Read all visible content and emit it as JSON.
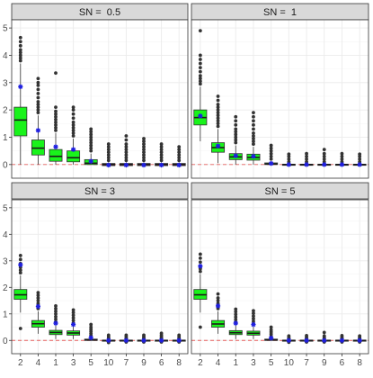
{
  "chart_data": {
    "type": "boxplot",
    "facet_layout": "2x2",
    "y_ticks": [
      0,
      1,
      2,
      3,
      4,
      5
    ],
    "ylim": [
      -0.5,
      5.3
    ],
    "reference_line": {
      "y": 0,
      "style": "dashed",
      "color": "#e8605e"
    },
    "colors": {
      "box_fill_positive": "#19f31b",
      "box_fill_zero": "#c1272d",
      "mean_marker": "#1f1fe0",
      "outlier": "#333333",
      "strip_fill": "#d9d9d9",
      "grid": "#ebebeb"
    },
    "panels": [
      {
        "label": "SN =  0.5",
        "categories": [
          "2",
          "4",
          "1",
          "3",
          "5",
          "10",
          "7",
          "9",
          "6",
          "8"
        ],
        "boxes": [
          {
            "q1": 1.05,
            "median": 1.63,
            "q3": 2.1,
            "whisker_low": 0.0,
            "whisker_high": 3.7,
            "mean": 2.85,
            "outliers": [
              3.8,
              3.9,
              4.0,
              4.1,
              4.2,
              4.35,
              4.5,
              4.65
            ],
            "fill": "positive"
          },
          {
            "q1": 0.35,
            "median": 0.6,
            "q3": 0.9,
            "whisker_low": 0.0,
            "whisker_high": 1.8,
            "mean": 1.25,
            "outliers": [
              1.9,
              2.0,
              2.1,
              2.2,
              2.3,
              2.45,
              2.6,
              2.75,
              2.9,
              3.0,
              3.15
            ],
            "fill": "positive"
          },
          {
            "q1": 0.12,
            "median": 0.3,
            "q3": 0.55,
            "whisker_low": 0.0,
            "whisker_high": 1.15,
            "mean": 0.65,
            "outliers": [
              1.25,
              1.35,
              1.45,
              1.55,
              1.65,
              1.75,
              1.85,
              1.95,
              2.1,
              3.35
            ],
            "fill": "positive"
          },
          {
            "q1": 0.1,
            "median": 0.25,
            "q3": 0.5,
            "whisker_low": 0.0,
            "whisker_high": 0.95,
            "mean": 0.55,
            "outliers": [
              1.05,
              1.15,
              1.25,
              1.35,
              1.45,
              1.55,
              1.7,
              1.85,
              2.0,
              2.1
            ],
            "fill": "positive"
          },
          {
            "q1": 0.0,
            "median": 0.05,
            "q3": 0.18,
            "whisker_low": 0.0,
            "whisker_high": 0.4,
            "mean": 0.12,
            "outliers": [
              0.5,
              0.6,
              0.7,
              0.8,
              0.9,
              1.0,
              1.1,
              1.2,
              1.3
            ],
            "fill": "positive"
          },
          {
            "q1": -0.04,
            "median": 0.0,
            "q3": 0.04,
            "whisker_low": -0.08,
            "whisker_high": 0.08,
            "mean": -0.02,
            "outliers": [
              0.15,
              0.25,
              0.35,
              0.45,
              0.55,
              0.65,
              0.75
            ],
            "fill": "zero"
          },
          {
            "q1": -0.04,
            "median": 0.0,
            "q3": 0.04,
            "whisker_low": -0.08,
            "whisker_high": 0.08,
            "mean": -0.02,
            "outliers": [
              0.15,
              0.25,
              0.35,
              0.45,
              0.55,
              0.65,
              0.75,
              0.9,
              1.05
            ],
            "fill": "zero"
          },
          {
            "q1": -0.04,
            "median": 0.0,
            "q3": 0.04,
            "whisker_low": -0.08,
            "whisker_high": 0.08,
            "mean": -0.02,
            "outliers": [
              0.15,
              0.25,
              0.35,
              0.45,
              0.55,
              0.65,
              0.75,
              0.85,
              0.95
            ],
            "fill": "zero"
          },
          {
            "q1": -0.04,
            "median": 0.0,
            "q3": 0.04,
            "whisker_low": -0.08,
            "whisker_high": 0.08,
            "mean": -0.02,
            "outliers": [
              0.15,
              0.25,
              0.35,
              0.45,
              0.55,
              0.65,
              0.75
            ],
            "fill": "zero"
          },
          {
            "q1": -0.04,
            "median": 0.0,
            "q3": 0.04,
            "whisker_low": -0.08,
            "whisker_high": 0.08,
            "mean": -0.02,
            "outliers": [
              0.15,
              0.25,
              0.35,
              0.45,
              0.55,
              0.65
            ],
            "fill": "zero"
          }
        ]
      },
      {
        "label": "SN =  1",
        "categories": [
          "2",
          "4",
          "1",
          "3",
          "5",
          "10",
          "7",
          "9",
          "6",
          "8"
        ],
        "boxes": [
          {
            "q1": 1.45,
            "median": 1.72,
            "q3": 2.0,
            "whisker_low": 0.85,
            "whisker_high": 2.85,
            "mean": 1.78,
            "outliers": [
              2.95,
              3.05,
              3.15,
              3.25,
              3.4,
              3.55,
              3.7,
              3.85,
              4.0,
              4.9
            ],
            "fill": "positive"
          },
          {
            "q1": 0.45,
            "median": 0.62,
            "q3": 0.8,
            "whisker_low": 0.05,
            "whisker_high": 1.3,
            "mean": 0.68,
            "outliers": [
              1.4,
              1.5,
              1.6,
              1.7,
              1.8,
              1.9,
              2.0,
              2.1,
              2.2,
              2.35,
              2.5
            ],
            "fill": "positive"
          },
          {
            "q1": 0.18,
            "median": 0.28,
            "q3": 0.4,
            "whisker_low": 0.0,
            "whisker_high": 0.7,
            "mean": 0.32,
            "outliers": [
              0.8,
              0.9,
              1.0,
              1.1,
              1.2,
              1.3,
              1.45,
              1.6,
              1.75
            ],
            "fill": "positive"
          },
          {
            "q1": 0.16,
            "median": 0.26,
            "q3": 0.38,
            "whisker_low": 0.0,
            "whisker_high": 0.65,
            "mean": 0.3,
            "outliers": [
              0.75,
              0.85,
              0.95,
              1.05,
              1.15,
              1.3,
              1.45,
              1.6,
              1.75,
              1.9
            ],
            "fill": "positive"
          },
          {
            "q1": 0.0,
            "median": 0.02,
            "q3": 0.06,
            "whisker_low": 0.0,
            "whisker_high": 0.12,
            "mean": 0.04,
            "outliers": [
              0.2,
              0.3,
              0.4,
              0.5,
              0.6,
              0.7
            ],
            "fill": "positive"
          },
          {
            "q1": -0.01,
            "median": 0.0,
            "q3": 0.01,
            "whisker_low": -0.03,
            "whisker_high": 0.03,
            "mean": 0.0,
            "outliers": [
              0.1,
              0.2,
              0.3,
              0.38
            ],
            "fill": "zero"
          },
          {
            "q1": -0.01,
            "median": 0.0,
            "q3": 0.01,
            "whisker_low": -0.03,
            "whisker_high": 0.03,
            "mean": 0.0,
            "outliers": [
              0.1,
              0.2,
              0.3,
              0.4
            ],
            "fill": "zero"
          },
          {
            "q1": -0.01,
            "median": 0.0,
            "q3": 0.01,
            "whisker_low": -0.03,
            "whisker_high": 0.03,
            "mean": 0.0,
            "outliers": [
              0.1,
              0.2,
              0.3,
              0.4,
              0.55
            ],
            "fill": "zero"
          },
          {
            "q1": -0.01,
            "median": 0.0,
            "q3": 0.01,
            "whisker_low": -0.03,
            "whisker_high": 0.03,
            "mean": 0.0,
            "outliers": [
              0.1,
              0.2,
              0.3,
              0.4
            ],
            "fill": "zero"
          },
          {
            "q1": -0.01,
            "median": 0.0,
            "q3": 0.01,
            "whisker_low": -0.03,
            "whisker_high": 0.03,
            "mean": 0.0,
            "outliers": [
              0.1,
              0.2,
              0.3,
              0.38
            ],
            "fill": "zero"
          }
        ]
      },
      {
        "label": "SN = 3",
        "categories": [
          "2",
          "4",
          "1",
          "3",
          "5",
          "10",
          "7",
          "9",
          "6",
          "8"
        ],
        "boxes": [
          {
            "q1": 1.55,
            "median": 1.72,
            "q3": 1.92,
            "whisker_low": 1.05,
            "whisker_high": 2.45,
            "mean": 2.85,
            "outliers": [
              0.45,
              2.55,
              2.65,
              2.75,
              2.9,
              3.05,
              3.2
            ],
            "fill": "positive"
          },
          {
            "q1": 0.5,
            "median": 0.63,
            "q3": 0.75,
            "whisker_low": 0.25,
            "whisker_high": 1.1,
            "mean": 1.28,
            "outliers": [
              1.2,
              1.3,
              1.4,
              1.5,
              1.6,
              1.7,
              1.8
            ],
            "fill": "positive"
          },
          {
            "q1": 0.22,
            "median": 0.3,
            "q3": 0.38,
            "whisker_low": 0.05,
            "whisker_high": 0.6,
            "mean": 0.65,
            "outliers": [
              0.7,
              0.8,
              0.9,
              1.0,
              1.1,
              1.2,
              1.3
            ],
            "fill": "positive"
          },
          {
            "q1": 0.2,
            "median": 0.28,
            "q3": 0.36,
            "whisker_low": 0.05,
            "whisker_high": 0.55,
            "mean": 0.6,
            "outliers": [
              0.65,
              0.75,
              0.85,
              0.95,
              1.05,
              1.15
            ],
            "fill": "positive"
          },
          {
            "q1": 0.0,
            "median": 0.02,
            "q3": 0.05,
            "whisker_low": 0.0,
            "whisker_high": 0.1,
            "mean": 0.1,
            "outliers": [
              0.18,
              0.26,
              0.34,
              0.42,
              0.5,
              0.6
            ],
            "fill": "positive"
          },
          {
            "q1": -0.01,
            "median": 0.0,
            "q3": 0.01,
            "whisker_low": -0.03,
            "whisker_high": 0.03,
            "mean": 0.0,
            "outliers": [
              -0.08,
              0.08,
              0.14,
              0.2
            ],
            "fill": "zero"
          },
          {
            "q1": -0.01,
            "median": 0.0,
            "q3": 0.01,
            "whisker_low": -0.03,
            "whisker_high": 0.03,
            "mean": 0.0,
            "outliers": [
              -0.06,
              0.08,
              0.14,
              0.2
            ],
            "fill": "zero"
          },
          {
            "q1": -0.01,
            "median": 0.0,
            "q3": 0.01,
            "whisker_low": -0.03,
            "whisker_high": 0.03,
            "mean": 0.0,
            "outliers": [
              -0.06,
              0.08,
              0.14,
              0.2
            ],
            "fill": "zero"
          },
          {
            "q1": -0.01,
            "median": 0.0,
            "q3": 0.01,
            "whisker_low": -0.03,
            "whisker_high": 0.03,
            "mean": 0.0,
            "outliers": [
              -0.06,
              0.08,
              0.14,
              0.2,
              0.27
            ],
            "fill": "zero"
          },
          {
            "q1": -0.01,
            "median": 0.0,
            "q3": 0.01,
            "whisker_low": -0.03,
            "whisker_high": 0.03,
            "mean": 0.0,
            "outliers": [
              -0.06,
              0.08,
              0.14,
              0.2
            ],
            "fill": "zero"
          }
        ]
      },
      {
        "label": "SN = 5",
        "categories": [
          "2",
          "4",
          "1",
          "3",
          "5",
          "10",
          "7",
          "9",
          "6",
          "8"
        ],
        "boxes": [
          {
            "q1": 1.55,
            "median": 1.72,
            "q3": 1.92,
            "whisker_low": 1.05,
            "whisker_high": 2.5,
            "mean": 2.8,
            "outliers": [
              0.5,
              2.6,
              2.7,
              2.8,
              2.95,
              3.1,
              3.25
            ],
            "fill": "positive"
          },
          {
            "q1": 0.5,
            "median": 0.62,
            "q3": 0.75,
            "whisker_low": 0.25,
            "whisker_high": 1.1,
            "mean": 1.3,
            "outliers": [
              1.2,
              1.3,
              1.4,
              1.5,
              1.6,
              1.75
            ],
            "fill": "positive"
          },
          {
            "q1": 0.22,
            "median": 0.29,
            "q3": 0.37,
            "whisker_low": 0.05,
            "whisker_high": 0.58,
            "mean": 0.65,
            "outliers": [
              0.68,
              0.78,
              0.88,
              0.98,
              1.08,
              1.18
            ],
            "fill": "positive"
          },
          {
            "q1": 0.2,
            "median": 0.27,
            "q3": 0.35,
            "whisker_low": 0.05,
            "whisker_high": 0.52,
            "mean": 0.6,
            "outliers": [
              0.62,
              0.72,
              0.82,
              0.92,
              1.02,
              1.12
            ],
            "fill": "positive"
          },
          {
            "q1": 0.0,
            "median": 0.02,
            "q3": 0.05,
            "whisker_low": 0.0,
            "whisker_high": 0.1,
            "mean": 0.09,
            "outliers": [
              0.16,
              0.24,
              0.32,
              0.4,
              0.5
            ],
            "fill": "positive"
          },
          {
            "q1": -0.01,
            "median": 0.0,
            "q3": 0.01,
            "whisker_low": -0.03,
            "whisker_high": 0.03,
            "mean": 0.0,
            "outliers": [
              -0.07,
              0.07,
              0.12,
              0.17
            ],
            "fill": "zero"
          },
          {
            "q1": -0.01,
            "median": 0.0,
            "q3": 0.01,
            "whisker_low": -0.03,
            "whisker_high": 0.03,
            "mean": 0.0,
            "outliers": [
              -0.06,
              0.07,
              0.12,
              0.18
            ],
            "fill": "zero"
          },
          {
            "q1": -0.01,
            "median": 0.0,
            "q3": 0.01,
            "whisker_low": -0.03,
            "whisker_high": 0.03,
            "mean": 0.0,
            "outliers": [
              -0.06,
              0.07,
              0.12,
              0.17,
              0.3
            ],
            "fill": "zero"
          },
          {
            "q1": -0.01,
            "median": 0.0,
            "q3": 0.01,
            "whisker_low": -0.03,
            "whisker_high": 0.03,
            "mean": 0.0,
            "outliers": [
              -0.06,
              0.07,
              0.12,
              0.18
            ],
            "fill": "zero"
          },
          {
            "q1": -0.01,
            "median": 0.0,
            "q3": 0.01,
            "whisker_low": -0.03,
            "whisker_high": 0.03,
            "mean": 0.0,
            "outliers": [
              -0.06,
              0.07,
              0.12,
              0.17
            ],
            "fill": "zero"
          }
        ]
      }
    ]
  }
}
